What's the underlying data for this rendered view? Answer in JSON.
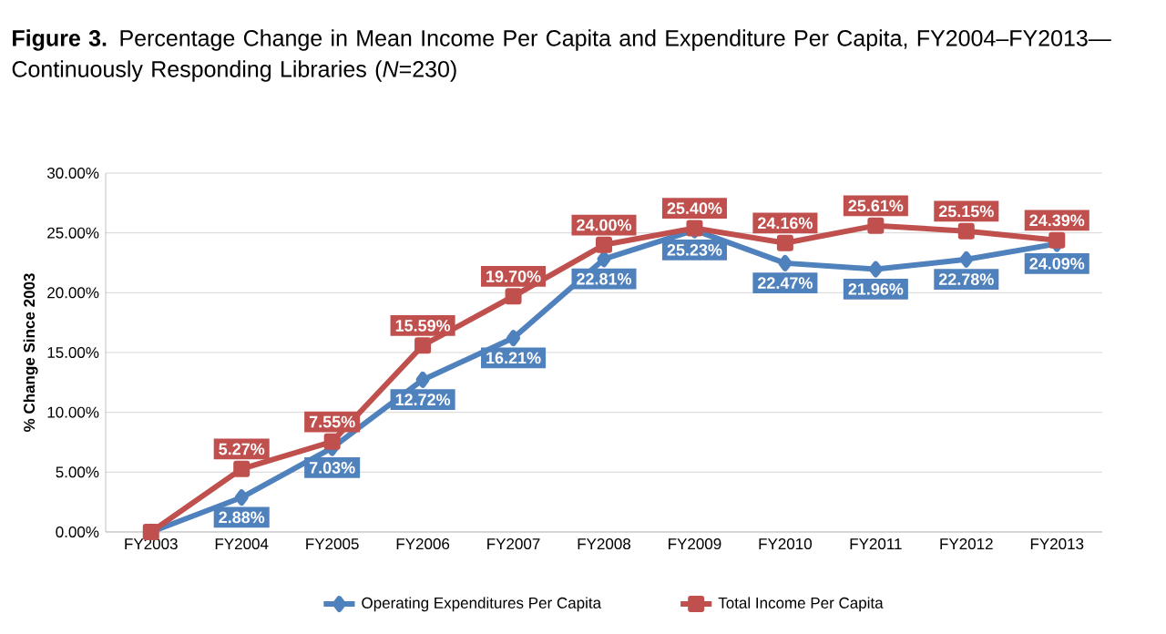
{
  "chart_data": {
    "type": "line",
    "title": "**Figure 3.** Percentage Change in Mean Income Per Capita and Expenditure Per Capita, FY2004–FY2013—Continuously Responding Libraries (*N*=230)",
    "ylabel": "% Change Since 2003",
    "categories": [
      "FY2003",
      "FY2004",
      "FY2005",
      "FY2006",
      "FY2007",
      "FY2008",
      "FY2009",
      "FY2010",
      "FY2011",
      "FY2012",
      "FY2013"
    ],
    "series": [
      {
        "name": "Operating Expenditures Per Capita",
        "color": "#4f81bd",
        "marker": "diamond",
        "values": [
          0,
          2.88,
          7.03,
          12.72,
          16.21,
          22.81,
          25.23,
          22.47,
          21.96,
          22.78,
          24.09
        ],
        "value_labels": [
          null,
          "2.88%",
          "7.03%",
          "12.72%",
          "16.21%",
          "22.81%",
          "25.23%",
          "22.47%",
          "21.96%",
          "22.78%",
          "24.09%"
        ]
      },
      {
        "name": "Total Income Per Capita",
        "color": "#c0504d",
        "marker": "square",
        "values": [
          0,
          5.27,
          7.55,
          15.59,
          19.7,
          24.0,
          25.4,
          24.16,
          25.61,
          25.15,
          24.39
        ],
        "value_labels": [
          null,
          "5.27%",
          "7.55%",
          "15.59%",
          "19.70%",
          "24.00%",
          "25.40%",
          "24.16%",
          "25.61%",
          "25.15%",
          "24.39%"
        ]
      }
    ],
    "ylim": [
      0,
      30
    ],
    "yticks": [
      {
        "value": 0,
        "label": "0.00%"
      },
      {
        "value": 5,
        "label": "5.00%"
      },
      {
        "value": 10,
        "label": "10.00%"
      },
      {
        "value": 15,
        "label": "15.00%"
      },
      {
        "value": 20,
        "label": "20.00%"
      },
      {
        "value": 25,
        "label": "25.00%"
      },
      {
        "value": 30,
        "label": "30.00%"
      }
    ],
    "grid": "y",
    "legend": "bottom"
  }
}
